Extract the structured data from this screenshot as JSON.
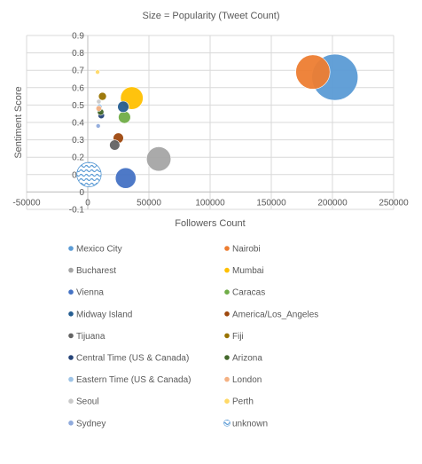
{
  "chart_data": {
    "type": "bubble",
    "title": "Size = Popularity (Tweet Count)",
    "xlabel": "Followers Count",
    "ylabel": "Sentiment Score",
    "xlim": [
      -50000,
      250000
    ],
    "ylim": [
      -0.1,
      0.9
    ],
    "x_ticks": [
      "-50000",
      "0",
      "50000",
      "100000",
      "150000",
      "200000",
      "250000"
    ],
    "y_ticks": [
      "-0.1",
      "0",
      "0.1",
      "0.2",
      "0.3",
      "0.4",
      "0.5",
      "0.6",
      "0.7",
      "0.8",
      "0.9"
    ],
    "grid": true,
    "legend_position": "bottom",
    "series": [
      {
        "name": "Mexico City",
        "color": "#5B9BD5",
        "x": 202000,
        "y": 0.66,
        "size": 100
      },
      {
        "name": "Nairobi",
        "color": "#ED7D31",
        "x": 184000,
        "y": 0.69,
        "size": 55
      },
      {
        "name": "Bucharest",
        "color": "#A5A5A5",
        "x": 58000,
        "y": 0.19,
        "size": 28
      },
      {
        "name": "Mumbai",
        "color": "#FFC000",
        "x": 36000,
        "y": 0.54,
        "size": 24
      },
      {
        "name": "Vienna",
        "color": "#4472C4",
        "x": 31000,
        "y": 0.08,
        "size": 20
      },
      {
        "name": "Caracas",
        "color": "#70AD47",
        "x": 30000,
        "y": 0.43,
        "size": 7
      },
      {
        "name": "Midway Island",
        "color": "#255E91",
        "x": 29000,
        "y": 0.49,
        "size": 6
      },
      {
        "name": "America/Los_Angeles",
        "color": "#9E480E",
        "x": 25000,
        "y": 0.31,
        "size": 5
      },
      {
        "name": "Tijuana",
        "color": "#636363",
        "x": 22000,
        "y": 0.27,
        "size": 5
      },
      {
        "name": "Fiji",
        "color": "#997300",
        "x": 12000,
        "y": 0.55,
        "size": 3
      },
      {
        "name": "Central Time (US & Canada)",
        "color": "#264478",
        "x": 11000,
        "y": 0.44,
        "size": 2
      },
      {
        "name": "Arizona",
        "color": "#43682B",
        "x": 10500,
        "y": 0.46,
        "size": 2
      },
      {
        "name": "Eastern Time (US & Canada)",
        "color": "#9DC3E6",
        "x": 9500,
        "y": 0.49,
        "size": 1.5
      },
      {
        "name": "London",
        "color": "#F4B183",
        "x": 9000,
        "y": 0.48,
        "size": 1.5
      },
      {
        "name": "Seoul",
        "color": "#C9C9C9",
        "x": 9000,
        "y": 0.52,
        "size": 1
      },
      {
        "name": "Perth",
        "color": "#FFD966",
        "x": 8000,
        "y": 0.69,
        "size": 0.7
      },
      {
        "name": "Sydney",
        "color": "#8FAADC",
        "x": 8500,
        "y": 0.38,
        "size": 0.6
      },
      {
        "name": "unknown",
        "color": "#5B9BD5",
        "x": 1000,
        "y": 0.1,
        "size": 28,
        "pattern": "waves"
      }
    ]
  }
}
